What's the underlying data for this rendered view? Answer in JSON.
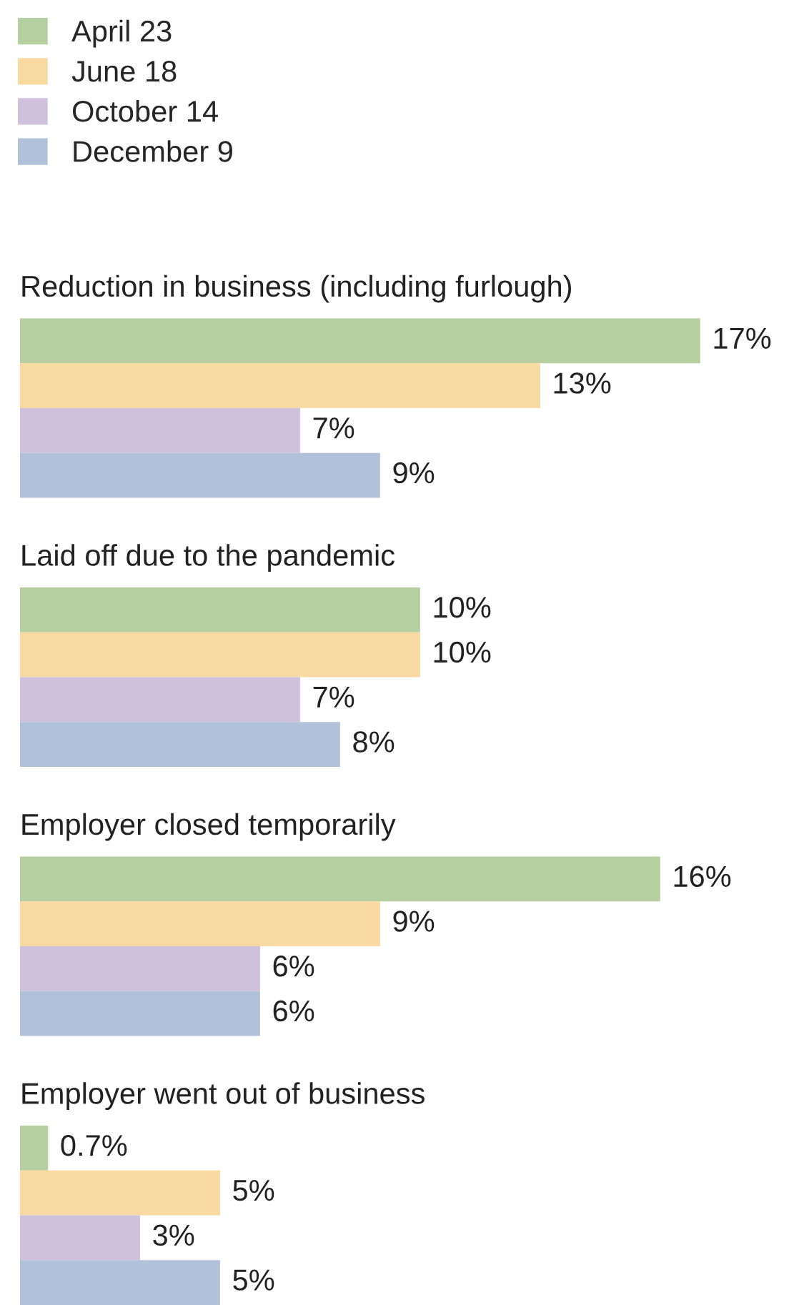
{
  "chart_data": {
    "type": "bar",
    "orientation": "horizontal",
    "legend": "top left",
    "tick_labels": false,
    "categories": [
      "Reduction in business (including furlough)",
      "Laid off due to the pandemic",
      "Employer closed temporarily",
      "Employer went out of business"
    ],
    "series": [
      {
        "name": "April 23",
        "color": "#b6cfa0",
        "values": [
          17,
          10,
          16,
          0.7
        ],
        "value_labels": [
          "17%",
          "10%",
          "16%",
          "0.7%"
        ]
      },
      {
        "name": "June 18",
        "color": "#f8d9a1",
        "values": [
          13,
          10,
          9,
          5
        ],
        "value_labels": [
          "13%",
          "10%",
          "9%",
          "5%"
        ]
      },
      {
        "name": "October 14",
        "color": "#cfc1dc",
        "values": [
          7,
          7,
          6,
          3
        ],
        "value_labels": [
          "7%",
          "7%",
          "6%",
          "3%"
        ]
      },
      {
        "name": "December 9",
        "color": "#b2c1da",
        "values": [
          9,
          8,
          6,
          5
        ],
        "value_labels": [
          "9%",
          "8%",
          "6%",
          "5%"
        ]
      }
    ]
  }
}
